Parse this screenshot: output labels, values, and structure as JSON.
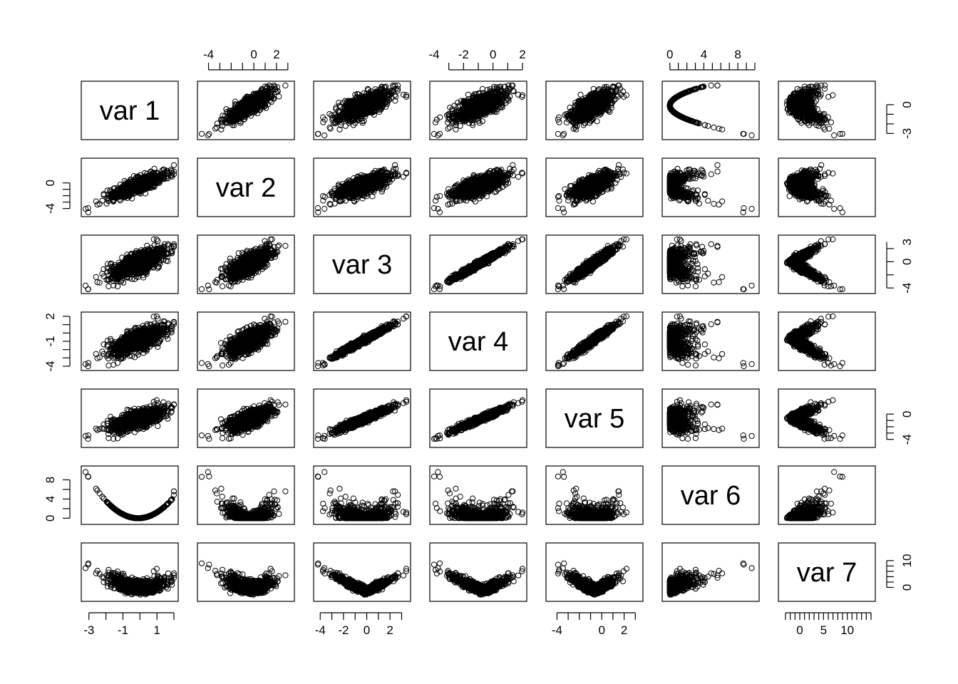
{
  "chart_data": {
    "type": "scatter",
    "kind": "scatterplot-matrix",
    "variables": [
      "var 1",
      "var 2",
      "var 3",
      "var 4",
      "var 5",
      "var 6",
      "var 7"
    ],
    "ranges": [
      [
        -3.2,
        2.0
      ],
      [
        -4.6,
        3.2
      ],
      [
        -4.2,
        3.4
      ],
      [
        -4.0,
        2.0
      ],
      [
        -4.6,
        3.3
      ],
      [
        -0.4,
        10.0
      ],
      [
        -3.6,
        15.0
      ]
    ],
    "axes": {
      "top": [
        {
          "var": 2,
          "ticks": [
            -4,
            0,
            2
          ]
        },
        {
          "var": 4,
          "ticks": [
            -4,
            -2,
            0,
            2
          ]
        },
        {
          "var": 6,
          "ticks": [
            0,
            4,
            8
          ]
        }
      ],
      "bottom": [
        {
          "var": 1,
          "ticks": [
            -3,
            -1,
            1
          ]
        },
        {
          "var": 3,
          "ticks": [
            -4,
            -2,
            0,
            2
          ]
        },
        {
          "var": 5,
          "ticks": [
            -4,
            0,
            2
          ]
        },
        {
          "var": 7,
          "ticks": [
            0,
            5,
            10
          ]
        }
      ],
      "left": [
        {
          "var": 2,
          "ticks": [
            -4,
            0
          ]
        },
        {
          "var": 4,
          "ticks": [
            -4,
            -1,
            2
          ]
        },
        {
          "var": 6,
          "ticks": [
            0,
            4,
            8
          ]
        }
      ],
      "right": [
        {
          "var": 1,
          "ticks": [
            -3,
            0
          ]
        },
        {
          "var": 3,
          "ticks": [
            -4,
            0,
            3
          ]
        },
        {
          "var": 5,
          "ticks": [
            -4,
            0
          ]
        },
        {
          "var": 7,
          "ticks": [
            0,
            10
          ]
        }
      ]
    },
    "n_points": 1000,
    "relationships": {
      "var 2": "correlated with var 1 (r≈0.85)",
      "var 3": "moderately correlated with var 1 and var 2",
      "var 4": "nearly linear with var 3",
      "var 5": "nearly linear with var 4",
      "var 6": "(var 1 + 0.1)^2, parabola with minimum near var 1 = 0",
      "var 7": "v-shaped in var 3, positively related to var 6"
    },
    "grid": false,
    "legend": "none"
  }
}
